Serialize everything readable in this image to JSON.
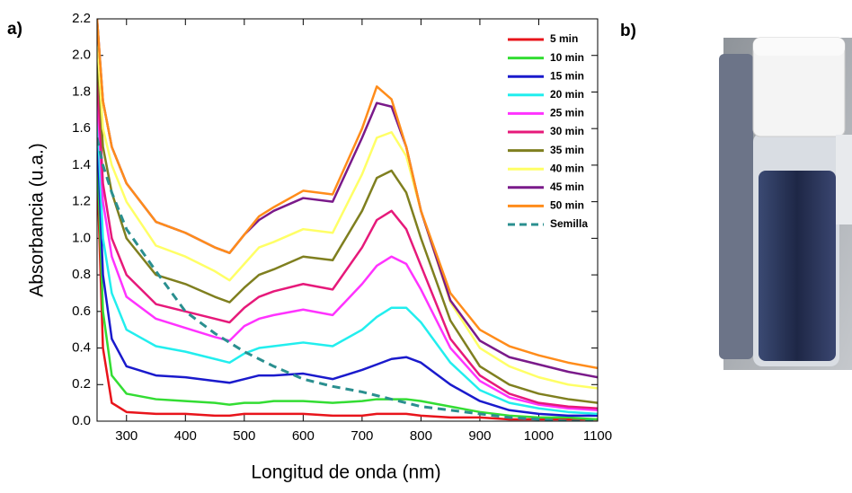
{
  "panel_labels": [
    "a)",
    "b)"
  ],
  "chart_data": {
    "type": "line",
    "xlabel": "Longitud de onda (nm)",
    "ylabel": "Absorbancia (u.a.)",
    "x": [
      250,
      260,
      275,
      300,
      350,
      400,
      450,
      475,
      500,
      525,
      550,
      600,
      650,
      700,
      725,
      750,
      775,
      800,
      850,
      900,
      950,
      1000,
      1050,
      1100
    ],
    "xlim": [
      250,
      1100
    ],
    "xticks": [
      300,
      400,
      500,
      600,
      700,
      800,
      900,
      1000,
      1100
    ],
    "ylim": [
      0,
      2.2
    ],
    "yticks": [
      {
        "value": 0,
        "label": "0.0"
      },
      0.2,
      0.4,
      0.6,
      0.8,
      {
        "value": 1,
        "label": "1.0"
      },
      1.2,
      1.4,
      1.6,
      1.8,
      {
        "value": 2,
        "label": "2.0"
      },
      2.2
    ],
    "legend": "upper right",
    "series": [
      {
        "name": "5 min",
        "color": "#e8141b",
        "values": [
          1.4,
          0.4,
          0.1,
          0.05,
          0.04,
          0.04,
          0.03,
          0.03,
          0.04,
          0.04,
          0.04,
          0.04,
          0.03,
          0.03,
          0.04,
          0.04,
          0.04,
          0.03,
          0.02,
          0.02,
          0.01,
          0.01,
          0.01,
          0.01
        ]
      },
      {
        "name": "10 min",
        "color": "#33dd33",
        "values": [
          1.5,
          0.6,
          0.25,
          0.15,
          0.12,
          0.11,
          0.1,
          0.09,
          0.1,
          0.1,
          0.11,
          0.11,
          0.1,
          0.11,
          0.12,
          0.12,
          0.12,
          0.11,
          0.08,
          0.05,
          0.03,
          0.02,
          0.02,
          0.01
        ]
      },
      {
        "name": "15 min",
        "color": "#1a1acc",
        "values": [
          1.6,
          0.8,
          0.45,
          0.3,
          0.25,
          0.24,
          0.22,
          0.21,
          0.23,
          0.25,
          0.25,
          0.26,
          0.23,
          0.28,
          0.31,
          0.34,
          0.35,
          0.32,
          0.2,
          0.11,
          0.06,
          0.04,
          0.03,
          0.03
        ]
      },
      {
        "name": "20 min",
        "color": "#22eeee",
        "values": [
          1.7,
          1.0,
          0.7,
          0.5,
          0.41,
          0.38,
          0.34,
          0.32,
          0.37,
          0.4,
          0.41,
          0.43,
          0.41,
          0.5,
          0.57,
          0.62,
          0.62,
          0.54,
          0.32,
          0.17,
          0.1,
          0.07,
          0.05,
          0.04
        ]
      },
      {
        "name": "25 min",
        "color": "#ff33ff",
        "values": [
          1.8,
          1.2,
          0.9,
          0.68,
          0.56,
          0.51,
          0.46,
          0.44,
          0.52,
          0.56,
          0.58,
          0.61,
          0.58,
          0.75,
          0.85,
          0.9,
          0.86,
          0.72,
          0.4,
          0.22,
          0.13,
          0.09,
          0.07,
          0.06
        ]
      },
      {
        "name": "30 min",
        "color": "#e6197a",
        "values": [
          1.9,
          1.3,
          1.0,
          0.8,
          0.64,
          0.6,
          0.56,
          0.54,
          0.62,
          0.68,
          0.71,
          0.75,
          0.72,
          0.95,
          1.1,
          1.15,
          1.05,
          0.85,
          0.45,
          0.25,
          0.15,
          0.1,
          0.08,
          0.07
        ]
      },
      {
        "name": "35 min",
        "color": "#7f7f1f",
        "values": [
          2.0,
          1.5,
          1.25,
          1.0,
          0.8,
          0.75,
          0.68,
          0.65,
          0.73,
          0.8,
          0.83,
          0.9,
          0.88,
          1.15,
          1.33,
          1.37,
          1.25,
          1.0,
          0.55,
          0.3,
          0.2,
          0.15,
          0.12,
          0.1
        ]
      },
      {
        "name": "40 min",
        "color": "#ffff66",
        "values": [
          2.1,
          1.6,
          1.4,
          1.2,
          0.96,
          0.9,
          0.82,
          0.77,
          0.86,
          0.95,
          0.98,
          1.05,
          1.03,
          1.35,
          1.55,
          1.58,
          1.45,
          1.15,
          0.65,
          0.4,
          0.3,
          0.24,
          0.2,
          0.18
        ]
      },
      {
        "name": "45 min",
        "color": "#7a1a8a",
        "values": [
          2.2,
          1.75,
          1.5,
          1.3,
          1.09,
          1.03,
          0.95,
          0.92,
          1.02,
          1.1,
          1.15,
          1.22,
          1.2,
          1.55,
          1.74,
          1.72,
          1.5,
          1.15,
          0.66,
          0.44,
          0.35,
          0.31,
          0.27,
          0.24
        ]
      },
      {
        "name": "50 min",
        "color": "#ff8c1a",
        "values": [
          2.2,
          1.75,
          1.5,
          1.3,
          1.09,
          1.03,
          0.95,
          0.92,
          1.02,
          1.12,
          1.17,
          1.26,
          1.24,
          1.6,
          1.83,
          1.76,
          1.5,
          1.15,
          0.7,
          0.5,
          0.41,
          0.36,
          0.32,
          0.29
        ]
      },
      {
        "name": "Semilla",
        "color": "#2a8f8f",
        "linestyle": "dashed",
        "values": [
          1.55,
          1.4,
          1.25,
          1.05,
          0.82,
          0.6,
          0.48,
          0.43,
          0.38,
          0.34,
          0.3,
          0.23,
          0.19,
          0.16,
          0.14,
          0.12,
          0.1,
          0.08,
          0.06,
          0.04,
          0.02,
          0.01,
          0,
          0
        ]
      }
    ]
  }
}
